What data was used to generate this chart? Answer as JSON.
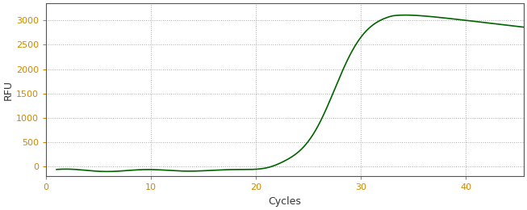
{
  "title": "",
  "xlabel": "Cycles",
  "ylabel": "RFU",
  "xlim": [
    0,
    45.5
  ],
  "ylim": [
    -200,
    3350
  ],
  "yticks": [
    0,
    500,
    1000,
    1500,
    2000,
    2500,
    3000
  ],
  "xticks": [
    0,
    10,
    20,
    30,
    40
  ],
  "line_color": "#006400",
  "line_width": 1.2,
  "grid_color": "#aaaaaa",
  "background_color": "#ffffff",
  "tick_label_color": "#cc8800",
  "axis_label_color": "#333333",
  "spine_color": "#555555",
  "curve_params": {
    "baseline_level": -80,
    "noise_amplitude": 30,
    "inflection_cycle": 27.5,
    "steepness": 0.65,
    "plateau": 3180,
    "peak_cycle": 33,
    "peak_height": 3200,
    "final_value": 3000,
    "rise_start": 22
  }
}
